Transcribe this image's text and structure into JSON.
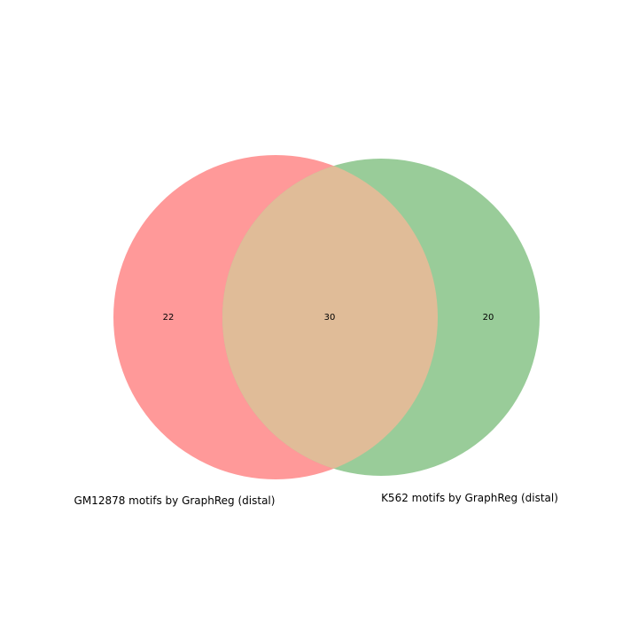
{
  "venn": {
    "sets": [
      {
        "name": "GM12878 motifs by GraphReg (distal)",
        "color": "#ff9999"
      },
      {
        "name": "K562 motifs by GraphReg (distal)",
        "color": "#99cc99"
      }
    ],
    "overlap_color": "#e0bc98",
    "counts": {
      "left_only": "22",
      "overlap": "30",
      "right_only": "20"
    }
  }
}
